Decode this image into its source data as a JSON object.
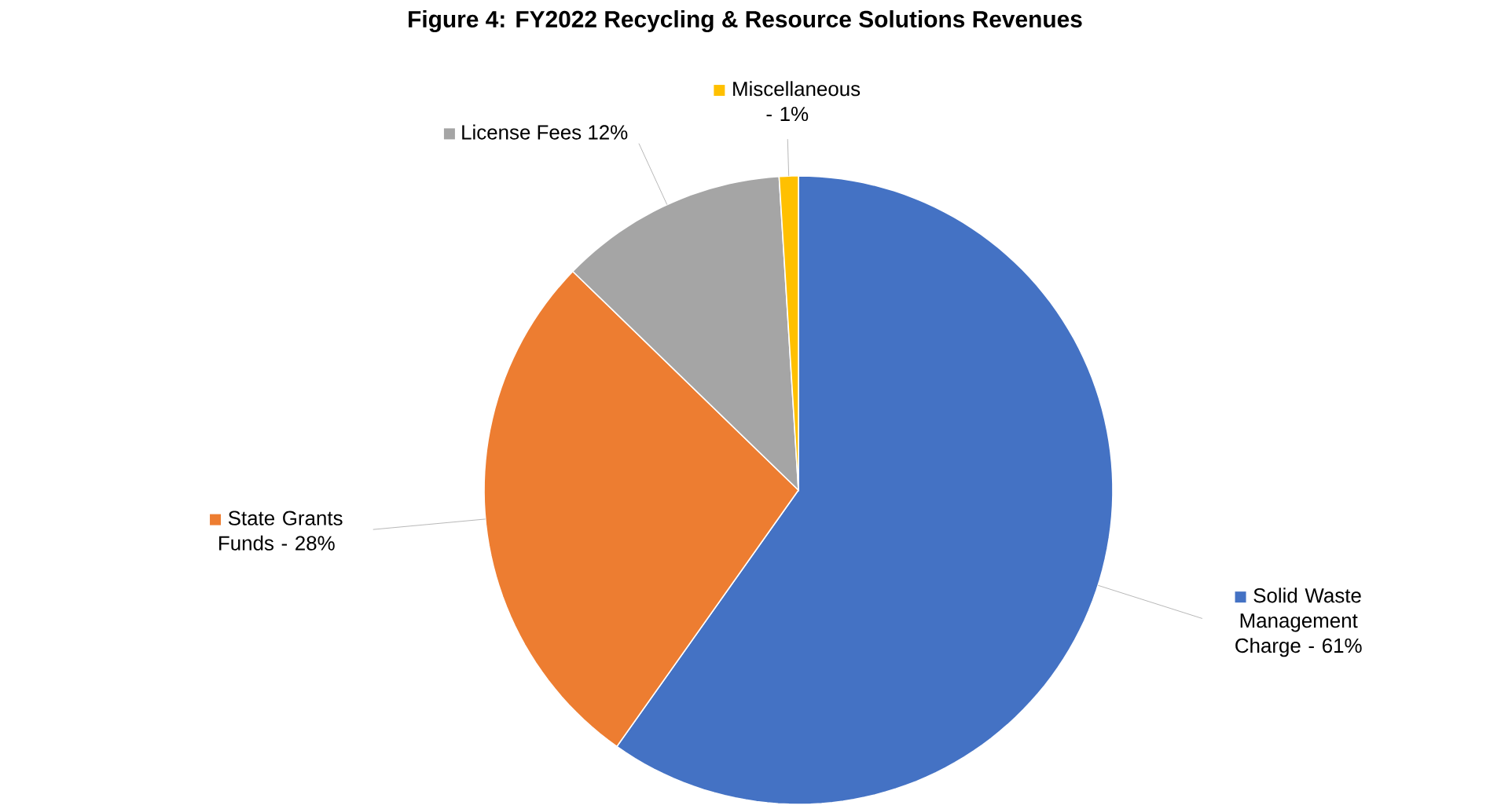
{
  "chart_data": {
    "type": "pie",
    "title": "Figure 4: FY2022 Recycling & Resource Solutions Revenues",
    "categories": [
      "Solid Waste Management Charge -",
      "State Grants Funds -",
      "License Fees",
      "Miscellaneous -"
    ],
    "values": [
      61,
      28,
      12,
      1
    ],
    "colors": [
      "#4472c4",
      "#ed7d31",
      "#a5a5a5",
      "#ffc000"
    ],
    "data_labels": true,
    "legend": "right",
    "value_labels": [
      "61%",
      "28%",
      "12%",
      "1%"
    ]
  }
}
